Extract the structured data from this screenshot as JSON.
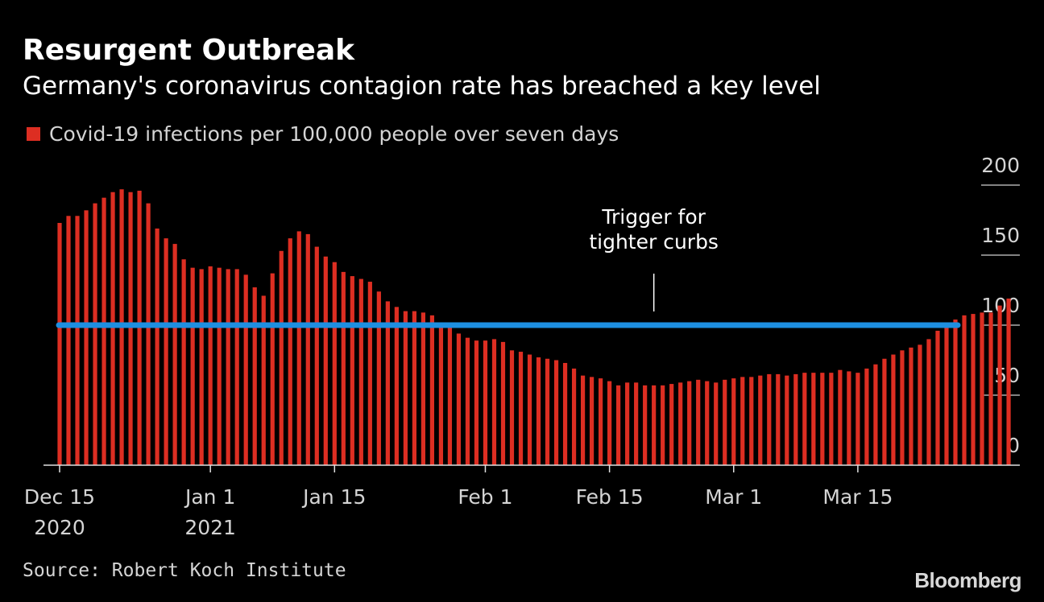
{
  "title": "Resurgent Outbreak",
  "subtitle": "Germany's coronavirus contagion rate has breached a key level",
  "source": "Source: Robert Koch Institute",
  "brand": "Bloomberg",
  "colors": {
    "background": "#000000",
    "bar": "#dd2e22",
    "threshold": "#1d8fe1",
    "text": "#ffffff",
    "muted_text": "#d4d4d4"
  },
  "chart_data": {
    "type": "bar",
    "title": "Resurgent Outbreak",
    "subtitle": "Germany's coronavirus contagion rate has breached a key level",
    "legend": [
      {
        "label": "Covid-19 infections per 100,000 people over seven days",
        "color": "#dd2e22"
      }
    ],
    "legend_position": "top-left",
    "x_start": "2020-12-15",
    "x_end": "2021-03-26",
    "x_ticks": [
      {
        "date": "2020-12-15",
        "label": "Dec 15",
        "sublabel": "2020"
      },
      {
        "date": "2021-01-01",
        "label": "Jan 1",
        "sublabel": "2021"
      },
      {
        "date": "2021-01-15",
        "label": "Jan 15",
        "sublabel": ""
      },
      {
        "date": "2021-02-01",
        "label": "Feb 1",
        "sublabel": ""
      },
      {
        "date": "2021-02-15",
        "label": "Feb 15",
        "sublabel": ""
      },
      {
        "date": "2021-03-01",
        "label": "Mar 1",
        "sublabel": ""
      },
      {
        "date": "2021-03-15",
        "label": "Mar 15",
        "sublabel": ""
      }
    ],
    "y_ticks": [
      0,
      50,
      100,
      150,
      200
    ],
    "ylim": [
      0,
      200
    ],
    "y_axis_position": "right",
    "values": [
      173,
      178,
      178,
      182,
      187,
      191,
      195,
      197,
      195,
      196,
      187,
      169,
      162,
      158,
      147,
      141,
      140,
      142,
      141,
      140,
      140,
      136,
      127,
      121,
      137,
      153,
      162,
      167,
      165,
      156,
      149,
      145,
      138,
      135,
      133,
      131,
      124,
      117,
      113,
      110,
      110,
      109,
      107,
      100,
      98,
      94,
      91,
      89,
      89,
      90,
      88,
      82,
      81,
      79,
      77,
      76,
      75,
      73,
      69,
      64,
      63,
      62,
      60,
      57,
      59,
      59,
      57,
      57,
      57,
      58,
      59,
      60,
      61,
      60,
      59,
      61,
      62,
      63,
      63,
      64,
      65,
      65,
      64,
      65,
      66,
      66,
      66,
      66,
      68,
      67,
      66,
      69,
      72,
      76,
      79,
      82,
      84,
      86,
      90,
      96,
      100,
      104,
      107,
      108,
      109,
      109,
      114,
      119
    ],
    "threshold": {
      "value": 100,
      "label_line1": "Trigger for",
      "label_line2": "tighter curbs",
      "label_date": "2021-02-20"
    }
  }
}
